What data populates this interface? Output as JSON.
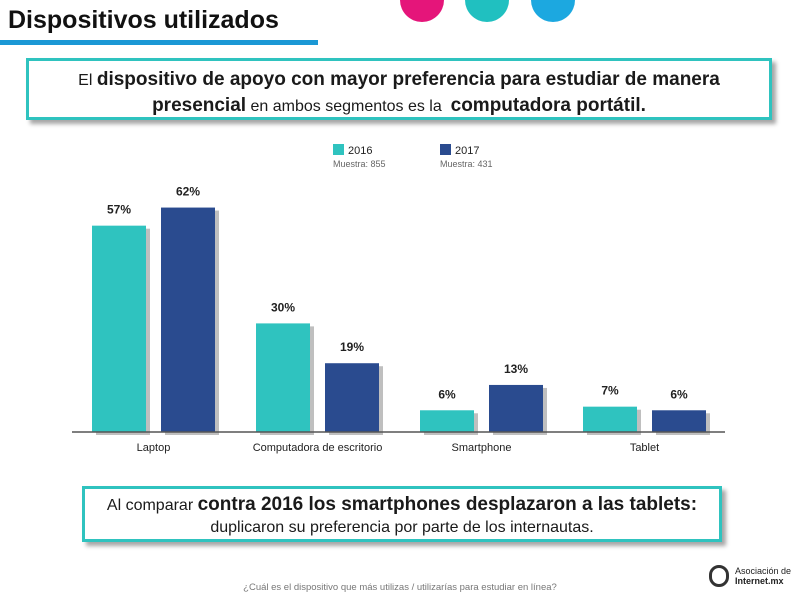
{
  "header": {
    "title": "Dispositivos utilizados",
    "accent_colors": [
      "#e5157a",
      "#20c0c0",
      "#1ca8e0"
    ]
  },
  "callout_top": {
    "p1": "El",
    "p2": "dispositivo de apoyo con mayor preferencia para estudiar de manera",
    "p3": "presencial",
    "p4": "en ambos segmentos es la",
    "p5": "computadora portátil."
  },
  "legend": {
    "items": [
      {
        "label": "2016",
        "sample": "Muestra: 855",
        "color": "#2fc3bf"
      },
      {
        "label": "2017",
        "sample": "Muestra: 431",
        "color": "#2a4b8f"
      }
    ]
  },
  "chart_data": {
    "type": "bar",
    "categories": [
      "Laptop",
      "Computadora de escritorio",
      "Smartphone",
      "Tablet"
    ],
    "series": [
      {
        "name": "2016",
        "values": [
          57,
          30,
          6,
          7
        ],
        "labels": [
          "57%",
          "30%",
          "6%",
          "7%"
        ],
        "color": "#2fc3bf"
      },
      {
        "name": "2017",
        "values": [
          62,
          19,
          13,
          6
        ],
        "labels": [
          "62%",
          "19%",
          "13%",
          "6%"
        ],
        "color": "#2a4b8f"
      }
    ],
    "ylim": [
      0,
      100
    ],
    "legend_position": "top",
    "grid": false
  },
  "callout_bottom": {
    "p1": "Al comparar",
    "p2": "contra 2016 los smartphones desplazaron a las tablets:",
    "p3": "duplicaron su preferencia por parte de los internautas."
  },
  "footer": {
    "question": "¿Cuál es el dispositivo que más utilizas / utilizarías para estudiar en línea?",
    "logo_line1": "Asociación de",
    "logo_line2": "Internet.mx"
  }
}
